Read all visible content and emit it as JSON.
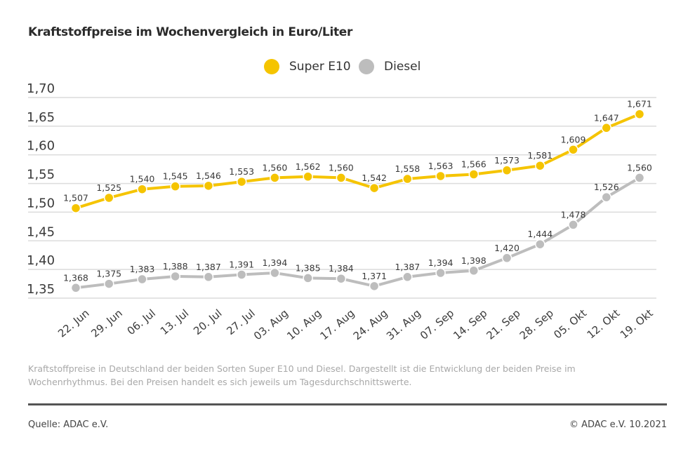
{
  "header": {
    "title": "Kraftstoffpreise im Wochenvergleich in Euro/Liter"
  },
  "legend": {
    "items": [
      {
        "label": "Super E10",
        "color": "#F5C400"
      },
      {
        "label": "Diesel",
        "color": "#BDBDBD"
      }
    ]
  },
  "chart_data": {
    "type": "line",
    "title": "Kraftstoffpreise im Wochenvergleich in Euro/Liter",
    "xlabel": "",
    "ylabel": "Euro/Liter",
    "ylim": [
      1.35,
      1.7
    ],
    "yticks": [
      "1,70",
      "1,65",
      "1,60",
      "1,55",
      "1,50",
      "1,45",
      "1,40",
      "1,35"
    ],
    "ytick_values": [
      1.7,
      1.65,
      1.6,
      1.55,
      1.5,
      1.45,
      1.4,
      1.35
    ],
    "grid": true,
    "legend_position": "top-center",
    "categories": [
      "22. Jun",
      "29. Jun",
      "06. Jul",
      "13. Jul",
      "20. Jul",
      "27. Jul",
      "03. Aug",
      "10. Aug",
      "17. Aug",
      "24. Aug",
      "31. Aug",
      "07. Sep",
      "14. Sep",
      "21. Sep",
      "28. Sep",
      "05. Okt",
      "12. Okt",
      "19. Okt"
    ],
    "series": [
      {
        "name": "Super E10",
        "color": "#F5C400",
        "values": [
          1.507,
          1.525,
          1.54,
          1.545,
          1.546,
          1.553,
          1.56,
          1.562,
          1.56,
          1.542,
          1.558,
          1.563,
          1.566,
          1.573,
          1.581,
          1.609,
          1.647,
          1.671
        ],
        "labels": [
          "1,507",
          "1,525",
          "1,540",
          "1,545",
          "1,546",
          "1,553",
          "1,560",
          "1,562",
          "1,560",
          "1,542",
          "1,558",
          "1,563",
          "1,566",
          "1,573",
          "1,581",
          "1,609",
          "1,647",
          "1,671"
        ]
      },
      {
        "name": "Diesel",
        "color": "#BDBDBD",
        "values": [
          1.368,
          1.375,
          1.383,
          1.388,
          1.387,
          1.391,
          1.394,
          1.385,
          1.384,
          1.371,
          1.387,
          1.394,
          1.398,
          1.42,
          1.444,
          1.478,
          1.526,
          1.56
        ],
        "labels": [
          "1,368",
          "1,375",
          "1,383",
          "1,388",
          "1,387",
          "1,391",
          "1,394",
          "1,385",
          "1,384",
          "1,371",
          "1,387",
          "1,394",
          "1,398",
          "1,420",
          "1,444",
          "1,478",
          "1,526",
          "1,560"
        ]
      }
    ]
  },
  "footer": {
    "caption": "Kraftstoffpreise in Deutschland der beiden Sorten Super E10 und Diesel. Dargestellt ist die Entwicklung der beiden Preise im Wochenrhythmus. Bei den Preisen handelt es sich jeweils um Tagesdurchschnittswerte.",
    "source": "Quelle: ADAC e.V.",
    "copyright": "© ADAC e.V. 10.2021"
  }
}
